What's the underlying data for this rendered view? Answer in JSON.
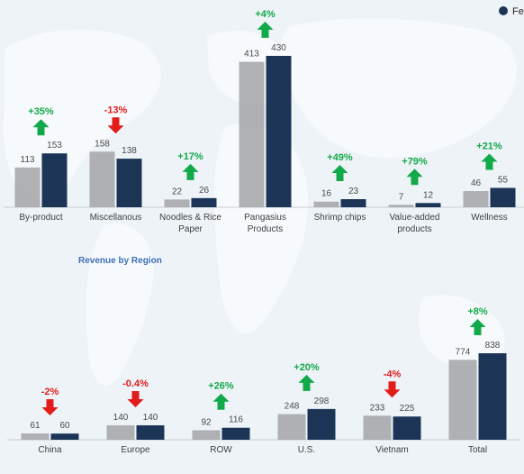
{
  "legend": {
    "label": "Fe",
    "color": "#1c3557"
  },
  "colors": {
    "prev": "#a6a9ab",
    "cur": "#1c3557",
    "up": "#12a94a",
    "down": "#e21b1b"
  },
  "chart_data": [
    {
      "type": "bar",
      "title": "",
      "categories": [
        [
          "By-product"
        ],
        [
          "Miscellanous"
        ],
        [
          "Noodles & Rice",
          "Paper"
        ],
        [
          "Pangasius",
          "Products"
        ],
        [
          "Shrimp chips"
        ],
        [
          "Value-added",
          "products"
        ],
        [
          "Wellness"
        ]
      ],
      "series": [
        {
          "values": [
            113,
            158,
            22,
            413,
            16,
            7,
            46
          ]
        },
        {
          "values": [
            153,
            138,
            26,
            430,
            23,
            12,
            55
          ]
        }
      ],
      "changes": [
        "+35%",
        "-13%",
        "+17%",
        "+4%",
        "+49%",
        "+79%",
        "+21%"
      ],
      "directions": [
        "up",
        "down",
        "up",
        "up",
        "up",
        "up",
        "up"
      ],
      "ylim": [
        0,
        430
      ]
    },
    {
      "type": "bar",
      "title": "Revenue by Region",
      "categories": [
        [
          "China"
        ],
        [
          "Europe"
        ],
        [
          "ROW"
        ],
        [
          "U.S."
        ],
        [
          "Vietnam"
        ],
        [
          "Total"
        ]
      ],
      "series": [
        {
          "values": [
            61,
            140,
            92,
            248,
            233,
            774
          ]
        },
        {
          "values": [
            60,
            140,
            116,
            298,
            225,
            838
          ]
        }
      ],
      "changes": [
        "-2%",
        "-0.4%",
        "+26%",
        "+20%",
        "-4%",
        "+8%"
      ],
      "directions": [
        "down",
        "down",
        "up",
        "up",
        "down",
        "up"
      ],
      "ylim": [
        0,
        838
      ]
    }
  ]
}
